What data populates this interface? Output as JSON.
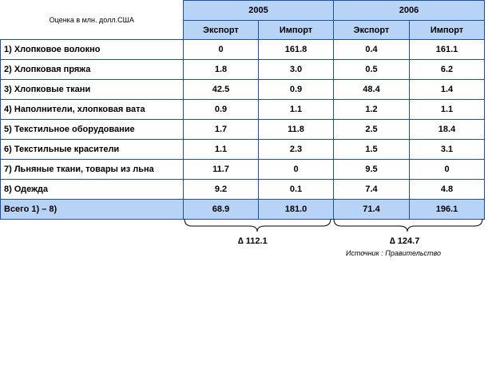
{
  "chart_data": {
    "type": "table",
    "caption": "Оценка в млн. долл.США",
    "years": [
      "2005",
      "2006"
    ],
    "subheaders": [
      "Экспорт",
      "Импорт",
      "Экспорт",
      "Импорт"
    ],
    "rows": [
      {
        "label": "1) Хлопковое волокно",
        "values": [
          "0",
          "161.8",
          "0.4",
          "161.1"
        ]
      },
      {
        "label": "2) Хлопковая пряжа",
        "values": [
          "1.8",
          "3.0",
          "0.5",
          "6.2"
        ]
      },
      {
        "label": "3) Хлопковые ткани",
        "values": [
          "42.5",
          "0.9",
          "48.4",
          "1.4"
        ]
      },
      {
        "label": "4) Наполнители, хлопковая вата",
        "values": [
          "0.9",
          "1.1",
          "1.2",
          "1.1"
        ]
      },
      {
        "label": "5) Текстильное оборудование",
        "values": [
          "1.7",
          "11.8",
          "2.5",
          "18.4"
        ]
      },
      {
        "label": "6) Текстильные красители",
        "values": [
          "1.1",
          "2.3",
          "1.5",
          "3.1"
        ]
      },
      {
        "label": "7) Льняные ткани, товары из льна",
        "values": [
          "11.7",
          "0",
          "9.5",
          "0"
        ]
      },
      {
        "label": "8) Одежда",
        "values": [
          "9.2",
          "0.1",
          "7.4",
          "4.8"
        ]
      }
    ],
    "total": {
      "label": "Всего 1) – 8)",
      "values": [
        "68.9",
        "181.0",
        "71.4",
        "196.1"
      ]
    },
    "deltas": [
      "∆ 112.1",
      "∆ 124.7"
    ],
    "source": "Источник : Правительство"
  },
  "colors": {
    "header_fill": "#b7d3f5",
    "border": "#1f4f9e"
  }
}
